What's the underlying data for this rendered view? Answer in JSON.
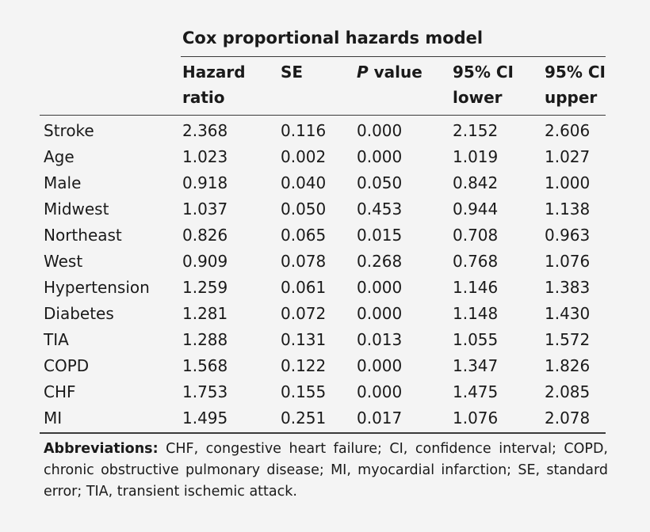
{
  "table": {
    "group_title": "Cox proportional hazards model",
    "headers": [
      {
        "line1": "Hazard",
        "line2": "ratio"
      },
      {
        "line1": "SE",
        "line2": ""
      },
      {
        "line1": "P",
        "line1_suffix": " value",
        "line2": ""
      },
      {
        "line1": "95% CI",
        "line2": "lower"
      },
      {
        "line1": "95% CI",
        "line2": "upper"
      }
    ],
    "rows": [
      {
        "label": "Stroke",
        "values": [
          "2.368",
          "0.116",
          "0.000",
          "2.152",
          "2.606"
        ]
      },
      {
        "label": "Age",
        "values": [
          "1.023",
          "0.002",
          "0.000",
          "1.019",
          "1.027"
        ]
      },
      {
        "label": "Male",
        "values": [
          "0.918",
          "0.040",
          "0.050",
          "0.842",
          "1.000"
        ]
      },
      {
        "label": "Midwest",
        "values": [
          "1.037",
          "0.050",
          "0.453",
          "0.944",
          "1.138"
        ]
      },
      {
        "label": "Northeast",
        "values": [
          "0.826",
          "0.065",
          "0.015",
          "0.708",
          "0.963"
        ]
      },
      {
        "label": "West",
        "values": [
          "0.909",
          "0.078",
          "0.268",
          "0.768",
          "1.076"
        ]
      },
      {
        "label": "Hypertension",
        "values": [
          "1.259",
          "0.061",
          "0.000",
          "1.146",
          "1.383"
        ]
      },
      {
        "label": "Diabetes",
        "values": [
          "1.281",
          "0.072",
          "0.000",
          "1.148",
          "1.430"
        ]
      },
      {
        "label": "TIA",
        "values": [
          "1.288",
          "0.131",
          "0.013",
          "1.055",
          "1.572"
        ]
      },
      {
        "label": "COPD",
        "values": [
          "1.568",
          "0.122",
          "0.000",
          "1.347",
          "1.826"
        ]
      },
      {
        "label": "CHF",
        "values": [
          "1.753",
          "0.155",
          "0.000",
          "1.475",
          "2.085"
        ]
      },
      {
        "label": "MI",
        "values": [
          "1.495",
          "0.251",
          "0.017",
          "1.076",
          "2.078"
        ]
      }
    ]
  },
  "footnote": {
    "label": "Abbreviations:",
    "text": " CHF, congestive heart failure; CI, confidence interval; COPD, chronic obstructive pulmonary disease; MI, myocardial infarction; SE, standard error; TIA, transient ischemic attack."
  },
  "colors": {
    "background": "#f4f4f4",
    "text": "#1a1a1a",
    "rules": "#3a3a3a"
  }
}
